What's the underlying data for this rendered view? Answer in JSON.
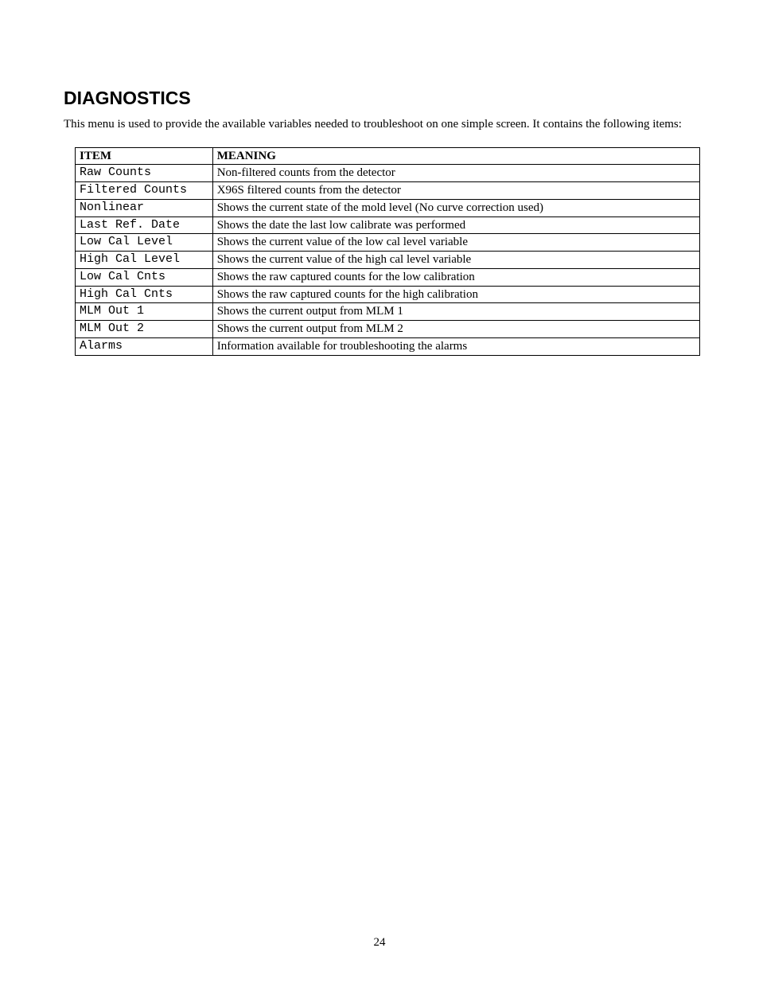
{
  "heading": "DIAGNOSTICS",
  "intro": "This menu is used to provide the available variables needed to troubleshoot on one simple screen.  It contains the following items:",
  "table": {
    "columns": [
      "ITEM",
      "MEANING"
    ],
    "rows": [
      {
        "item": "Raw Counts",
        "meaning": "Non-filtered counts from the detector"
      },
      {
        "item": "Filtered Counts",
        "meaning": "X96S filtered counts from the detector"
      },
      {
        "item": "Nonlinear",
        "meaning": "Shows the current state of the mold level (No curve correction used)"
      },
      {
        "item": "Last Ref. Date",
        "meaning": "Shows the date the last low calibrate was performed"
      },
      {
        "item": "Low Cal Level",
        "meaning": "Shows the current value of the low cal level variable"
      },
      {
        "item": "High Cal Level",
        "meaning": "Shows the current value of the high cal level variable"
      },
      {
        "item": "Low Cal Cnts",
        "meaning": "Shows the raw captured counts for the low calibration"
      },
      {
        "item": "High Cal Cnts",
        "meaning": "Shows the raw captured counts for the high calibration"
      },
      {
        "item": "MLM Out 1",
        "meaning": "Shows the current output from MLM 1"
      },
      {
        "item": "MLM Out 2",
        "meaning": "Shows the current output from MLM 2"
      },
      {
        "item": "Alarms",
        "meaning": "Information available for troubleshooting the alarms"
      }
    ]
  },
  "page_number": "24"
}
